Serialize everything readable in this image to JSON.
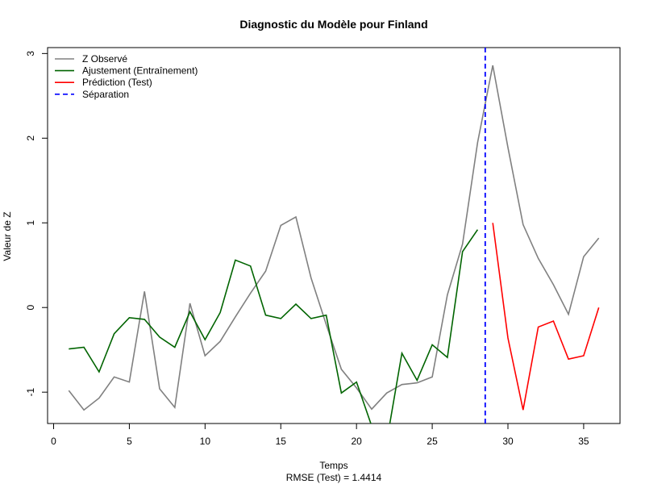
{
  "chart_data": {
    "type": "line",
    "title": "Diagnostic du Modèle pour Finland",
    "xlabel": "Temps",
    "subtitle": "RMSE (Test) = 1.4414",
    "ylabel": "Valeur de Z",
    "xlim": [
      -0.4,
      37.4
    ],
    "ylim": [
      -1.37,
      3.07
    ],
    "x_ticks": [
      0,
      5,
      10,
      15,
      20,
      25,
      30,
      35
    ],
    "y_ticks": [
      -1,
      0,
      1,
      2,
      3
    ],
    "grid": false,
    "legend_position": "top-left",
    "series": [
      {
        "name": "Z Observé",
        "color": "#808080",
        "line_style": "solid",
        "x": [
          1,
          2,
          3,
          4,
          5,
          6,
          7,
          8,
          9,
          10,
          11,
          12,
          13,
          14,
          15,
          16,
          17,
          18,
          19,
          20,
          21,
          22,
          23,
          24,
          25,
          26,
          27,
          28,
          29,
          30,
          31,
          32,
          33,
          34,
          35,
          36
        ],
        "y": [
          -0.98,
          -1.21,
          -1.07,
          -0.82,
          -0.88,
          0.19,
          -0.96,
          -1.18,
          0.05,
          -0.57,
          -0.4,
          -0.11,
          0.17,
          0.43,
          0.97,
          1.07,
          0.35,
          -0.2,
          -0.73,
          -0.95,
          -1.2,
          -1.01,
          -0.91,
          -0.89,
          -0.82,
          0.15,
          0.75,
          1.95,
          2.86,
          1.89,
          0.98,
          0.58,
          0.27,
          -0.08,
          0.6,
          0.82
        ]
      },
      {
        "name": "Ajustement (Entraînement)",
        "color": "#006400",
        "line_style": "solid",
        "x": [
          1,
          2,
          3,
          4,
          5,
          6,
          7,
          8,
          9,
          10,
          11,
          12,
          13,
          14,
          15,
          16,
          17,
          18,
          19,
          20,
          21,
          22,
          23,
          24,
          25,
          26,
          27,
          28
        ],
        "y": [
          -0.49,
          -0.47,
          -0.76,
          -0.31,
          -0.12,
          -0.14,
          -0.35,
          -0.47,
          -0.05,
          -0.38,
          -0.06,
          0.56,
          0.49,
          -0.09,
          -0.13,
          0.04,
          -0.13,
          -0.09,
          -1.01,
          -0.88,
          -1.4,
          -1.58,
          -0.54,
          -0.86,
          -0.44,
          -0.59,
          0.66,
          0.92
        ]
      },
      {
        "name": "Prédiction (Test)",
        "color": "#ff0000",
        "line_style": "solid",
        "x": [
          29,
          30,
          31,
          32,
          33,
          34,
          35,
          36
        ],
        "y": [
          1.0,
          -0.36,
          -1.21,
          -0.23,
          -0.16,
          -0.61,
          -0.57,
          0.0
        ]
      }
    ],
    "vlines": [
      {
        "name": "Séparation",
        "x": 28.5,
        "color": "#0000ff",
        "line_style": "dashed"
      }
    ]
  }
}
